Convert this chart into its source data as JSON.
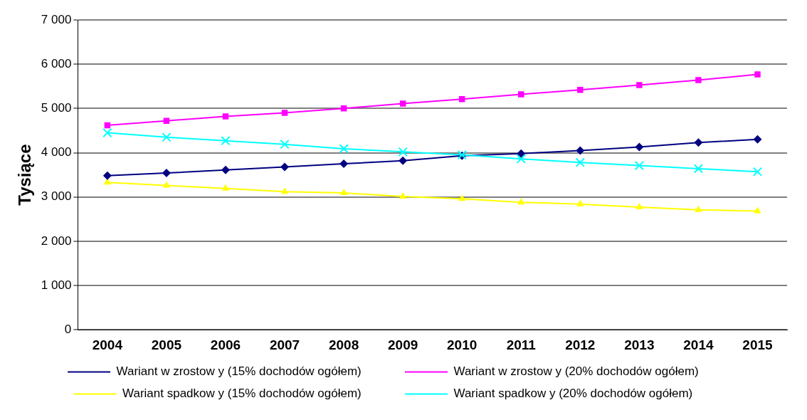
{
  "chart_data": {
    "type": "line",
    "ylabel": "Tysiące",
    "categories": [
      "2004",
      "2005",
      "2006",
      "2007",
      "2008",
      "2009",
      "2010",
      "2011",
      "2012",
      "2013",
      "2014",
      "2015"
    ],
    "series": [
      {
        "name": "Wariant w zrostow y (15% dochodów ogółem)",
        "color": "#000080",
        "marker": "diamond",
        "values": [
          3480,
          3540,
          3610,
          3680,
          3750,
          3820,
          3930,
          3980,
          4050,
          4130,
          4230,
          4300
        ]
      },
      {
        "name": "Wariant w zrostow y (20% dochodów ogółem)",
        "color": "#ff00ff",
        "marker": "square",
        "values": [
          4620,
          4720,
          4820,
          4900,
          5000,
          5110,
          5210,
          5320,
          5420,
          5530,
          5640,
          5770
        ]
      },
      {
        "name": "Wariant spadkow y (15% dochodów ogółem)",
        "color": "#ffff00",
        "marker": "triangle",
        "values": [
          3330,
          3260,
          3190,
          3120,
          3090,
          3010,
          2960,
          2880,
          2840,
          2770,
          2710,
          2680
        ]
      },
      {
        "name": "Wariant spadkow y (20% dochodów ogółem)",
        "color": "#00ffff",
        "marker": "cross",
        "values": [
          4450,
          4350,
          4270,
          4190,
          4090,
          4020,
          3950,
          3860,
          3780,
          3710,
          3640,
          3570
        ]
      }
    ],
    "ylim": [
      0,
      7000
    ],
    "yticks": [
      0,
      {
        "value": 1000,
        "label": "1 000"
      },
      {
        "value": 2000,
        "label": "2 000"
      },
      {
        "value": 3000,
        "label": "3 000"
      },
      {
        "value": 4000,
        "label": "4 000"
      },
      {
        "value": 5000,
        "label": "5 000"
      },
      {
        "value": 6000,
        "label": "6 000"
      },
      {
        "value": 7000,
        "label": "7 000"
      }
    ],
    "grid": "y",
    "legend": "bottom",
    "line_style": "solid"
  }
}
